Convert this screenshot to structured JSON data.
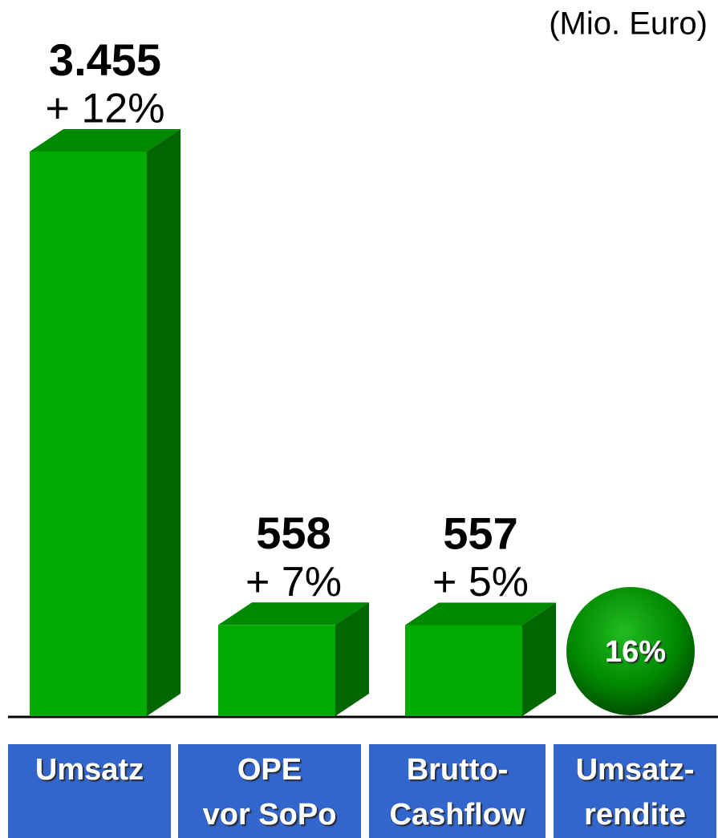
{
  "chart_data": {
    "type": "bar",
    "unit": "(Mio. Euro)",
    "categories": [
      [
        "Umsatz"
      ],
      [
        "OPE",
        "vor SoPo"
      ],
      [
        "Brutto-",
        "Cashflow"
      ],
      [
        "Umsatz-",
        "rendite"
      ]
    ],
    "values": [
      3455,
      558,
      557,
      null
    ],
    "value_labels": [
      "3.455",
      "558",
      "557",
      null
    ],
    "changes": [
      12,
      7,
      5,
      null
    ],
    "change_labels": [
      "+ 12%",
      "+ 7%",
      "+ 5%",
      null
    ],
    "rate": 16,
    "rate_label": "16%",
    "color": "#00aa00",
    "label_box_color": "#3366cc"
  }
}
